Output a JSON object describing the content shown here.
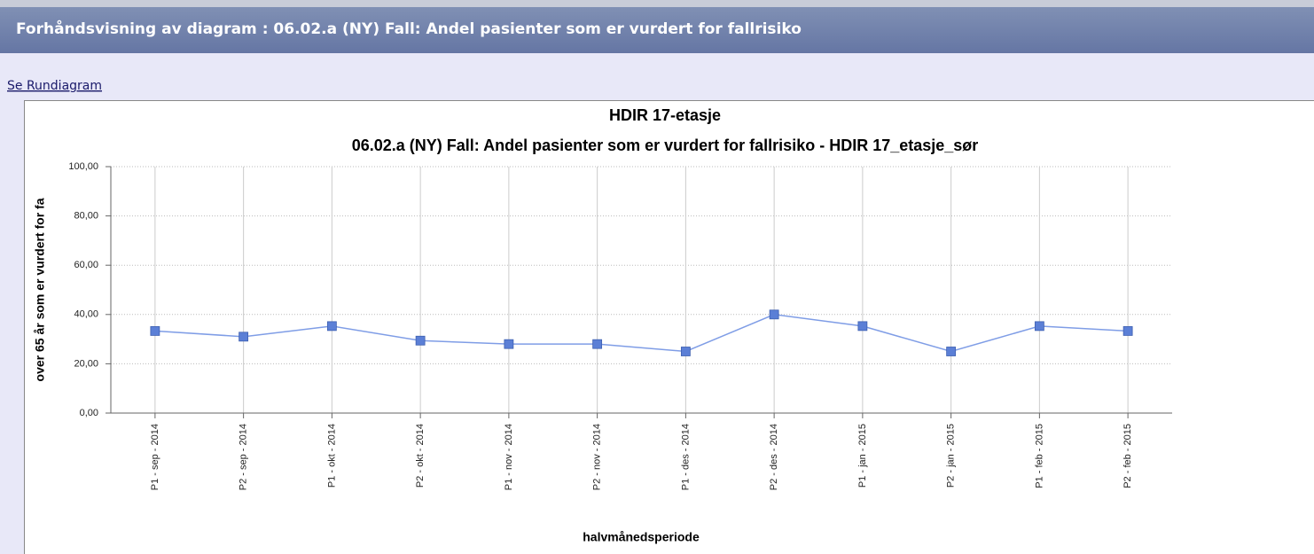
{
  "header": {
    "title": "Forhåndsvisning av diagram : 06.02.a (NY) Fall: Andel pasienter som er vurdert for fallrisiko"
  },
  "link": "Se Rundiagram",
  "chart_data": {
    "type": "line",
    "title": "HDIR 17-etasje",
    "subtitle": "06.02.a (NY) Fall: Andel pasienter som er vurdert for fallrisiko - HDIR 17_etasje_sør",
    "x_label": "halvmånedsperiode",
    "y_label": "over 65 år som er vurdert for fa",
    "categories": [
      "P1 - sep - 2014",
      "P2 - sep - 2014",
      "P1 - okt - 2014",
      "P2 - okt - 2014",
      "P1 - nov - 2014",
      "P2 - nov - 2014",
      "P1 - des - 2014",
      "P2 - des - 2014",
      "P1 - jan - 2015",
      "P2 - jan - 2015",
      "P1 - feb - 2015",
      "P2 - feb - 2015"
    ],
    "series": [
      {
        "name": "HDIR 17_etasje_sør",
        "color": "#5b7fd6",
        "values": [
          33.3,
          31,
          35.3,
          29.4,
          28,
          28,
          25,
          40,
          35.3,
          25,
          35.3,
          33.3
        ]
      }
    ],
    "ylim": [
      0,
      100
    ],
    "yticks": [
      {
        "value": 0,
        "label": "0,00"
      },
      {
        "value": 20,
        "label": "20,00"
      },
      {
        "value": 40,
        "label": "40,00"
      },
      {
        "value": 60,
        "label": "60,00"
      },
      {
        "value": 80,
        "label": "80,00"
      },
      {
        "value": 100,
        "label": "100,00"
      }
    ],
    "grid": true
  }
}
